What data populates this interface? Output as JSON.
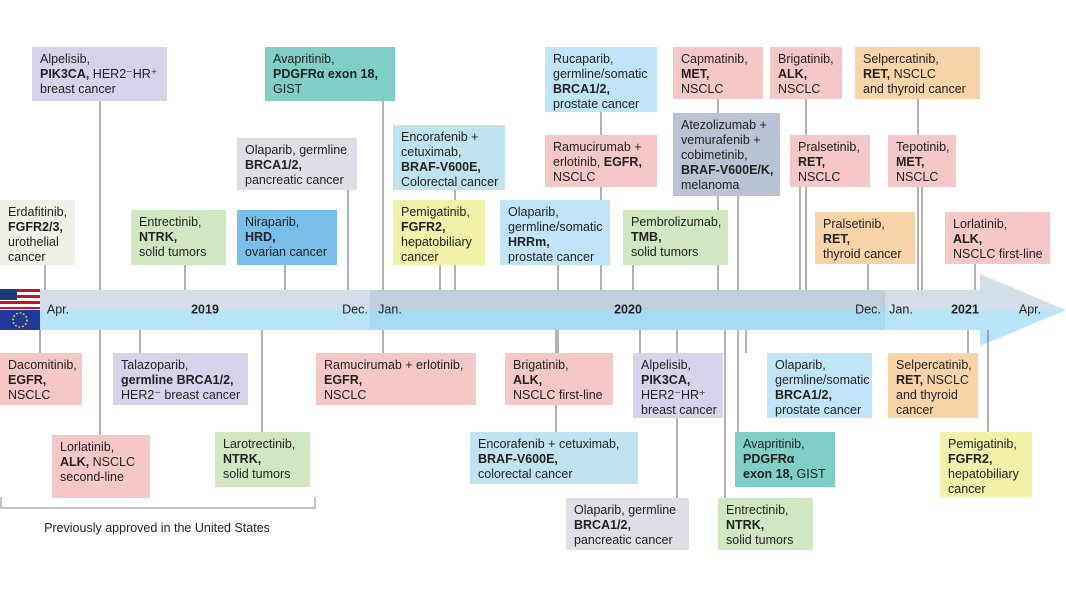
{
  "axis_labels": [
    "Apr.",
    "2019",
    "Dec.",
    "Jan.",
    "2020",
    "Dec.",
    "Jan.",
    "2021",
    "Apr."
  ],
  "note": "Previously approved in the United States",
  "boxes": [
    {
      "color": "#d6d4eb",
      "lines": [
        [
          "Alpelisib,"
        ],
        [
          {
            "bold": "PIK3CA,"
          },
          " HER2⁻HR⁺"
        ],
        [
          "breast cancer"
        ]
      ]
    },
    {
      "color": "#7fcfc7",
      "lines": [
        [
          "Avapritinib,"
        ],
        [
          {
            "bold": "PDGFRα exon 18,"
          }
        ],
        [
          "GIST"
        ]
      ]
    },
    {
      "color": "#dedfe6",
      "lines": [
        [
          "Olaparib, germline"
        ],
        [
          {
            "bold": "BRCA1/2,"
          }
        ],
        [
          "pancreatic cancer"
        ]
      ]
    },
    {
      "color": "#f1f0e6",
      "lines": [
        [
          "Erdafitinib,"
        ],
        [
          {
            "bold": "FGFR2/3,"
          }
        ],
        [
          "urothelial"
        ],
        [
          "cancer"
        ]
      ]
    },
    {
      "color": "#d0e7c2",
      "lines": [
        [
          "Entrectinib,"
        ],
        [
          {
            "bold": "NTRK,"
          }
        ],
        [
          "solid tumors"
        ]
      ]
    },
    {
      "color": "#79bfe9",
      "lines": [
        [
          "Niraparib,"
        ],
        [
          {
            "bold": "HRD,"
          }
        ],
        [
          "ovarian cancer"
        ]
      ]
    },
    {
      "color": "#c0e4ef",
      "lines": [
        [
          "Encorafenib +"
        ],
        [
          "cetuximab,"
        ],
        [
          {
            "bold": "BRAF-V600E,"
          }
        ],
        [
          "Colorectal cancer"
        ]
      ]
    },
    {
      "color": "#f1f1a9",
      "lines": [
        [
          "Pemigatinib,"
        ],
        [
          {
            "bold": "FGFR2,"
          }
        ],
        [
          "hepatobiliary"
        ],
        [
          "cancer"
        ]
      ]
    },
    {
      "color": "#c0e4f8",
      "lines": [
        [
          "Olaparib,"
        ],
        [
          "germline/somatic"
        ],
        [
          {
            "bold": "HRRm,"
          }
        ],
        [
          "prostate cancer"
        ]
      ]
    },
    {
      "color": "#c0e4f8",
      "lines": [
        [
          "Rucaparib,"
        ],
        [
          "germline/somatic"
        ],
        [
          {
            "bold": "BRCA1/2,"
          }
        ],
        [
          "prostate cancer"
        ]
      ]
    },
    {
      "color": "#f6c7c7",
      "lines": [
        [
          "Ramucirumab +"
        ],
        [
          "erlotinib, ",
          {
            "bold": "EGFR,"
          }
        ],
        [
          "NSCLC"
        ]
      ]
    },
    {
      "color": "#f6c7c7",
      "lines": [
        [
          "Capmatinib,"
        ],
        [
          {
            "bold": "MET,"
          }
        ],
        [
          "NSCLC"
        ]
      ]
    },
    {
      "color": "#b9c3d3",
      "lines": [
        [
          "Atezolizumab +"
        ],
        [
          "vemurafenib +"
        ],
        [
          "cobimetinib,"
        ],
        [
          {
            "bold": "BRAF-V600E/K,"
          }
        ],
        [
          "melanoma"
        ]
      ]
    },
    {
      "color": "#d0e7c2",
      "lines": [
        [
          "Pembrolizumab,"
        ],
        [
          {
            "bold": "TMB,"
          }
        ],
        [
          "solid tumors"
        ]
      ]
    },
    {
      "color": "#f6c7c7",
      "lines": [
        [
          "Brigatinib,"
        ],
        [
          {
            "bold": "ALK,"
          }
        ],
        [
          "NSCLC"
        ]
      ]
    },
    {
      "color": "#fad4a9",
      "lines": [
        [
          "Selpercatinib,"
        ],
        [
          {
            "bold": "RET,"
          },
          " NSCLC"
        ],
        [
          "and thyroid cancer"
        ]
      ]
    },
    {
      "color": "#f6c7c7",
      "lines": [
        [
          "Pralsetinib,"
        ],
        [
          {
            "bold": "RET,"
          }
        ],
        [
          "NSCLC"
        ]
      ]
    },
    {
      "color": "#f6c7c7",
      "lines": [
        [
          "Tepotinib,"
        ],
        [
          {
            "bold": "MET,"
          }
        ],
        [
          "NSCLC"
        ]
      ]
    },
    {
      "color": "#fad4a9",
      "lines": [
        [
          "Pralsetinib,"
        ],
        [
          {
            "bold": "RET,"
          }
        ],
        [
          "thyroid cancer"
        ]
      ]
    },
    {
      "color": "#f6c7c7",
      "lines": [
        [
          "Lorlatinib,"
        ],
        [
          {
            "bold": "ALK,"
          }
        ],
        [
          "NSCLC first-line"
        ]
      ]
    },
    {
      "color": "#f6c7c7",
      "lines": [
        [
          "Dacomitinib,"
        ],
        [
          {
            "bold": "EGFR,"
          }
        ],
        [
          "NSCLC"
        ]
      ]
    },
    {
      "color": "#f6c7c7",
      "lines": [
        [
          "Lorlatinib,"
        ],
        [
          {
            "bold": "ALK,"
          },
          " NSCLC"
        ],
        [
          "second-line"
        ]
      ]
    },
    {
      "color": "#d6d4eb",
      "lines": [
        [
          "Talazoparib,"
        ],
        [
          {
            "bold": "germline BRCA1/2,"
          }
        ],
        [
          "HER2⁻ breast cancer"
        ]
      ]
    },
    {
      "color": "#d0e7c2",
      "lines": [
        [
          "Larotrectinib,"
        ],
        [
          {
            "bold": "NTRK,"
          }
        ],
        [
          "solid tumors"
        ]
      ]
    },
    {
      "color": "#f6c7c7",
      "lines": [
        [
          "Ramucirumab + erlotinib,"
        ],
        [
          {
            "bold": "EGFR,"
          }
        ],
        [
          "NSCLC"
        ]
      ]
    },
    {
      "color": "#f6c7c7",
      "lines": [
        [
          "Brigatinib,"
        ],
        [
          {
            "bold": "ALK,"
          }
        ],
        [
          "NSCLC first-line"
        ]
      ]
    },
    {
      "color": "#c0e4ef",
      "lines": [
        [
          "Encorafenib + cetuximab,"
        ],
        [
          {
            "bold": "BRAF-V600E,"
          }
        ],
        [
          "colorectal cancer"
        ]
      ]
    },
    {
      "color": "#d6d4eb",
      "lines": [
        [
          "Alpelisib,"
        ],
        [
          {
            "bold": "PIK3CA,"
          }
        ],
        [
          "HER2⁻HR⁺"
        ],
        [
          "breast cancer"
        ]
      ]
    },
    {
      "color": "#dedfe6",
      "lines": [
        [
          "Olaparib, germline"
        ],
        [
          {
            "bold": "BRCA1/2,"
          }
        ],
        [
          "pancreatic cancer"
        ]
      ]
    },
    {
      "color": "#7fcfc7",
      "lines": [
        [
          "Avapritinib,"
        ],
        [
          {
            "bold": "PDGFRα"
          }
        ],
        [
          {
            "bold": "exon 18,"
          },
          " GIST"
        ]
      ]
    },
    {
      "color": "#c0e4f8",
      "lines": [
        [
          "Olaparib,"
        ],
        [
          "germline/somatic"
        ],
        [
          {
            "bold": "BRCA1/2,"
          }
        ],
        [
          "prostate cancer"
        ]
      ]
    },
    {
      "color": "#d0e7c2",
      "lines": [
        [
          "Entrectinib,"
        ],
        [
          {
            "bold": "NTRK,"
          }
        ],
        [
          "solid tumors"
        ]
      ]
    },
    {
      "color": "#fad4a9",
      "lines": [
        [
          "Selpercatinib,"
        ],
        [
          {
            "bold": "RET,"
          },
          " NSCLC"
        ],
        [
          "and thyroid"
        ],
        [
          "cancer"
        ]
      ]
    },
    {
      "color": "#f1f1a9",
      "lines": [
        [
          "Pemigatinib,"
        ],
        [
          {
            "bold": "FGFR2,"
          }
        ],
        [
          "hepatobiliary"
        ],
        [
          "cancer"
        ]
      ]
    }
  ]
}
